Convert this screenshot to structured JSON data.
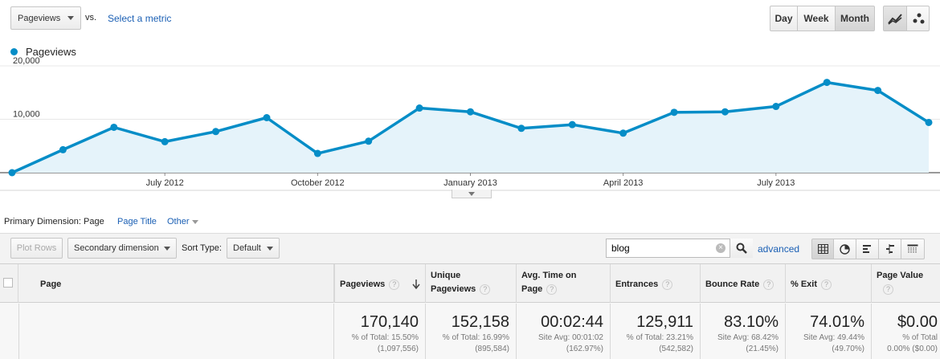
{
  "top_bar": {
    "metric_select": "Pageviews",
    "vs_label": "vs.",
    "select_metric_link": "Select a metric",
    "granularity": [
      {
        "label": "Day",
        "active": false
      },
      {
        "label": "Week",
        "active": false
      },
      {
        "label": "Month",
        "active": true
      }
    ],
    "chart_type_icons": [
      "line-chart-icon",
      "motion-chart-icon"
    ]
  },
  "chart": {
    "legend_label": "Pageviews",
    "chart_data": {
      "type": "area",
      "series": [
        {
          "name": "Pageviews",
          "color": "#058dc7",
          "values": [
            0,
            4300,
            8500,
            5800,
            7700,
            10300,
            3600,
            5900,
            12100,
            11400,
            8300,
            9000,
            7400,
            11300,
            11400,
            12400,
            16900,
            15400,
            9400
          ]
        }
      ],
      "x_ticks": [
        "July 2012",
        "October 2012",
        "January 2013",
        "April 2013",
        "July 2013"
      ],
      "y_ticks": [
        "20,000",
        "10,000"
      ],
      "ylim": [
        0,
        20000
      ],
      "grid": true,
      "legend": "top-left"
    }
  },
  "dimension_bar": {
    "label": "Primary Dimension:",
    "items": [
      {
        "label": "Page",
        "active": true
      },
      {
        "label": "Page Title",
        "active": false
      },
      {
        "label": "Other",
        "active": false
      }
    ]
  },
  "toolbar": {
    "plot_rows": "Plot Rows",
    "secondary_dimension": "Secondary dimension",
    "sort_type_label": "Sort Type:",
    "sort_type_value": "Default",
    "search_value": "blog",
    "advanced_link": "advanced",
    "view_icons": [
      "table-view-icon",
      "pie-view-icon",
      "performance-view-icon",
      "comparison-view-icon",
      "pivot-view-icon"
    ]
  },
  "table": {
    "headers": {
      "page": "Page",
      "pageviews": "Pageviews",
      "unique_pageviews_1": "Unique",
      "unique_pageviews_2": "Pageviews",
      "avg_time_1": "Avg. Time on",
      "avg_time_2": "Page",
      "entrances": "Entrances",
      "bounce_rate": "Bounce Rate",
      "exit": "% Exit",
      "page_value": "Page Value"
    },
    "totals": {
      "pageviews": {
        "value": "170,140",
        "line1": "% of Total: 15.50%",
        "line2": "(1,097,556)"
      },
      "unique_pageviews": {
        "value": "152,158",
        "line1": "% of Total: 16.99%",
        "line2": "(895,584)"
      },
      "avg_time": {
        "value": "00:02:44",
        "line1": "Site Avg: 00:01:02",
        "line2": "(162.97%)"
      },
      "entrances": {
        "value": "125,911",
        "line1": "% of Total: 23.21%",
        "line2": "(542,582)"
      },
      "bounce_rate": {
        "value": "83.10%",
        "line1": "Site Avg: 68.42%",
        "line2": "(21.45%)"
      },
      "exit": {
        "value": "74.01%",
        "line1": "Site Avg: 49.44%",
        "line2": "(49.70%)"
      },
      "page_value": {
        "value": "$0.00",
        "line1": "% of Total",
        "line2": "0.00% ($0.00)"
      }
    }
  }
}
